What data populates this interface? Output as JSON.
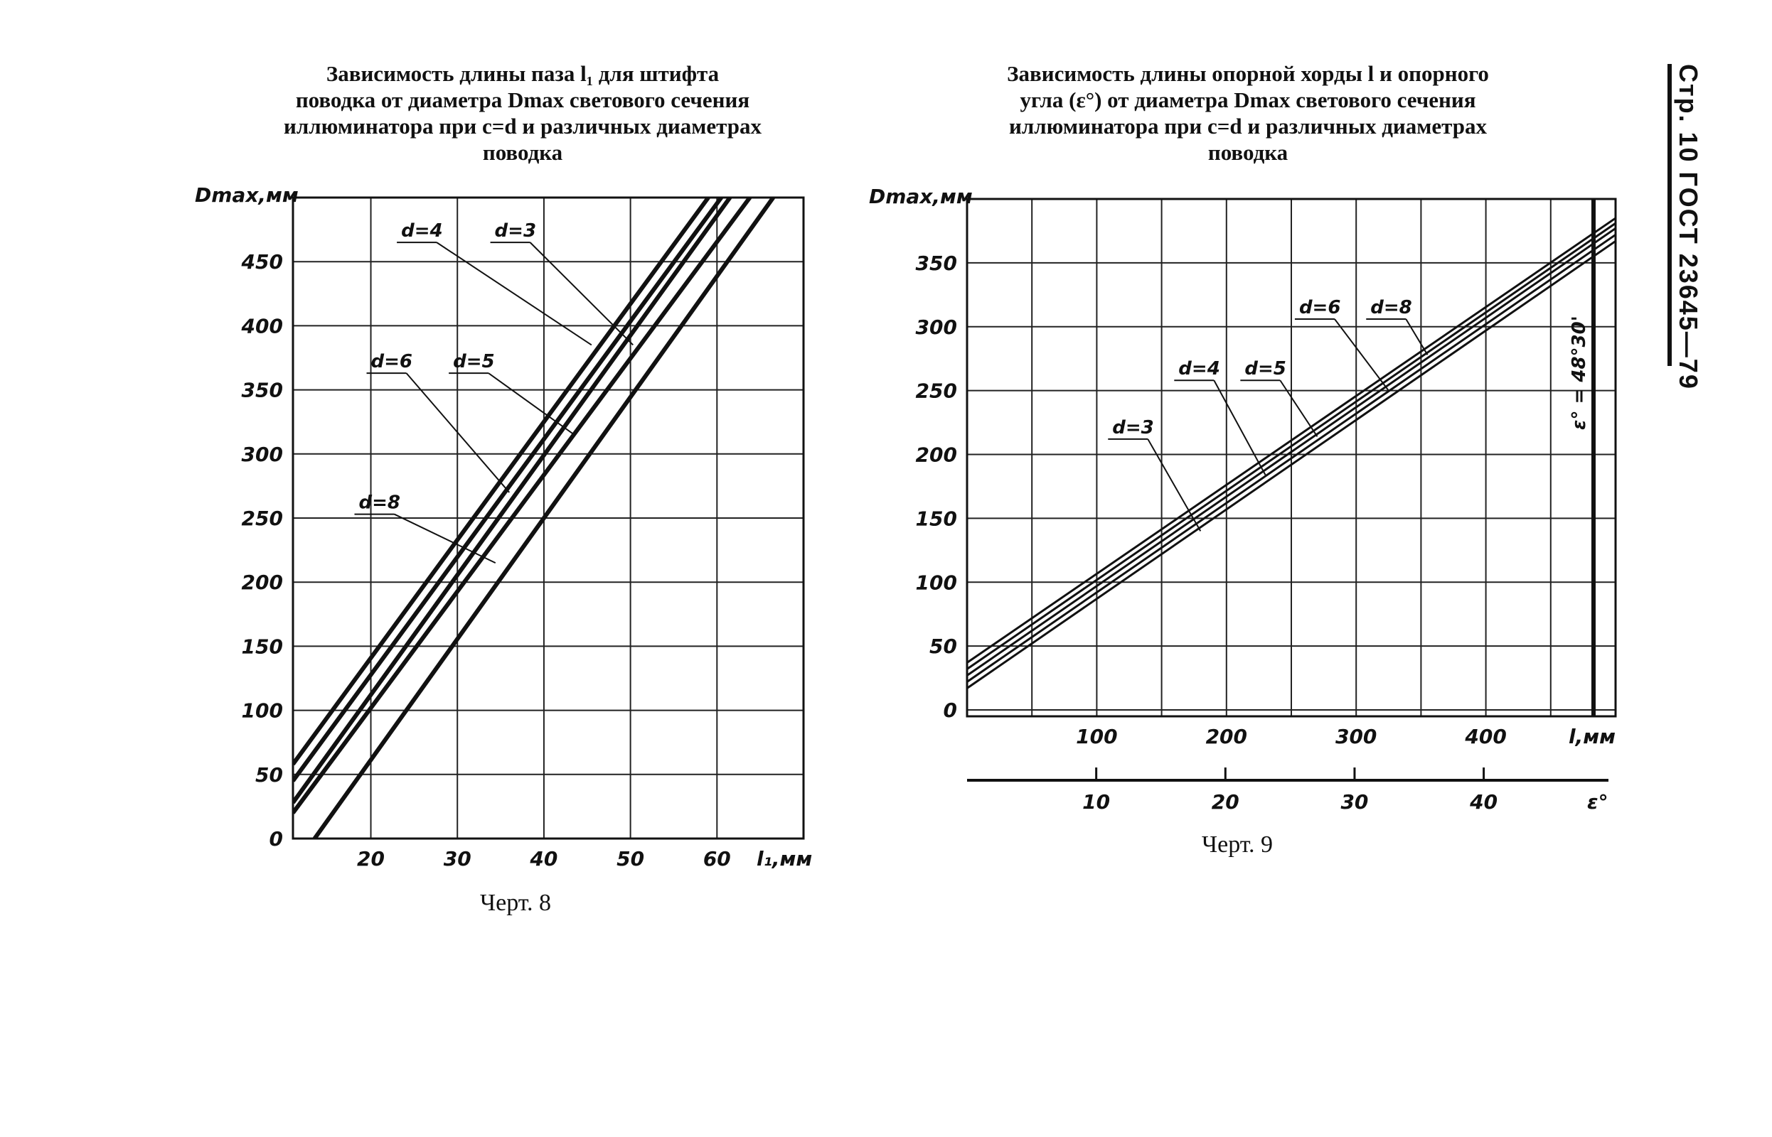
{
  "page_header": "Стр. 10 ГОСТ 23645—79",
  "chart_data": [
    {
      "type": "line",
      "title": "Зависимость длины паза l₁ для штифта\nповодка от диаметра Dmax светового сечения\nиллюминатора при c=d и различных диаметрах\nповодка",
      "caption": "Черт. 8",
      "xlabel": "l₁,мм",
      "ylabel": "Dmax,мм",
      "xlim": [
        11,
        70
      ],
      "ylim": [
        0,
        500
      ],
      "x_ticks": [
        20,
        30,
        40,
        50,
        60
      ],
      "x_tick_labels": [
        "20",
        "30",
        "40",
        "50",
        "60"
      ],
      "y_ticks": [
        0,
        50,
        100,
        150,
        200,
        250,
        300,
        350,
        400,
        450
      ],
      "y_tick_labels": [
        "0",
        "50",
        "100",
        "150",
        "200",
        "250",
        "300",
        "350",
        "400",
        "450"
      ],
      "grid": true,
      "series": [
        {
          "name": "d=3",
          "x": [
            11,
            61.5
          ],
          "y": [
            28,
            500
          ]
        },
        {
          "name": "d=4",
          "x": [
            11,
            59
          ],
          "y": [
            58,
            500
          ]
        },
        {
          "name": "d=5",
          "x": [
            11,
            63.8
          ],
          "y": [
            20,
            500
          ]
        },
        {
          "name": "d=6",
          "x": [
            11,
            60.5
          ],
          "y": [
            45,
            500
          ]
        },
        {
          "name": "d=8",
          "x": [
            13.5,
            66.5
          ],
          "y": [
            0,
            500
          ]
        }
      ],
      "annotations": [
        {
          "text": "d=4",
          "label_x": 23.5,
          "label_y": 465,
          "target_x": 45.5,
          "target_y": 385
        },
        {
          "text": "d=3",
          "label_x": 34.3,
          "label_y": 465,
          "target_x": 50.3,
          "target_y": 385
        },
        {
          "text": "d=6",
          "label_x": 20,
          "label_y": 363,
          "target_x": 36,
          "target_y": 270
        },
        {
          "text": "d=5",
          "label_x": 29.5,
          "label_y": 363,
          "target_x": 43.5,
          "target_y": 315
        },
        {
          "text": "d=8",
          "label_x": 18.6,
          "label_y": 253,
          "target_x": 34.4,
          "target_y": 215
        }
      ]
    },
    {
      "type": "line",
      "title": "Зависимость длины опорной хорды l и опорного\nугла (ε°) от диаметра Dmax светового сечения\nиллюминатора при c=d и различных диаметрах\nповодка",
      "caption": "Черт. 9",
      "xlabel": "l,мм",
      "ylabel": "Dmax,мм",
      "xlim": [
        0,
        500
      ],
      "ylim": [
        -5,
        400
      ],
      "x_ticks": [
        100,
        200,
        300,
        400
      ],
      "x_tick_labels": [
        "100",
        "200",
        "300",
        "400"
      ],
      "y_ticks": [
        0,
        50,
        100,
        150,
        200,
        250,
        300,
        350
      ],
      "y_tick_labels": [
        "0",
        "50",
        "100",
        "150",
        "200",
        "250",
        "300",
        "350"
      ],
      "grid": true,
      "secondary_axis": {
        "label": "ε°",
        "ticks": [
          10,
          20,
          30,
          40
        ],
        "tick_labels": [
          "10",
          "20",
          "30",
          "40"
        ]
      },
      "limit_line": {
        "x": 483,
        "label": "ε° = 48°30'"
      },
      "series": [
        {
          "name": "d=3",
          "x": [
            0,
            500
          ],
          "y": [
            22,
            372
          ]
        },
        {
          "name": "d=4",
          "x": [
            0,
            500
          ],
          "y": [
            27,
            377
          ]
        },
        {
          "name": "d=5",
          "x": [
            0,
            500
          ],
          "y": [
            32,
            381
          ]
        },
        {
          "name": "d=6",
          "x": [
            0,
            500
          ],
          "y": [
            37,
            385
          ]
        },
        {
          "name": "d=8",
          "x": [
            0,
            500
          ],
          "y": [
            17,
            367
          ]
        }
      ],
      "annotations": [
        {
          "text": "d=3",
          "label_x": 112,
          "label_y": 212,
          "target_x": 180,
          "target_y": 140
        },
        {
          "text": "d=4",
          "label_x": 163,
          "label_y": 258,
          "target_x": 230,
          "target_y": 184
        },
        {
          "text": "d=5",
          "label_x": 214,
          "label_y": 258,
          "target_x": 270,
          "target_y": 214
        },
        {
          "text": "d=6",
          "label_x": 256,
          "label_y": 306,
          "target_x": 325,
          "target_y": 250
        },
        {
          "text": "d=8",
          "label_x": 311,
          "label_y": 306,
          "target_x": 355,
          "target_y": 278
        }
      ]
    }
  ]
}
